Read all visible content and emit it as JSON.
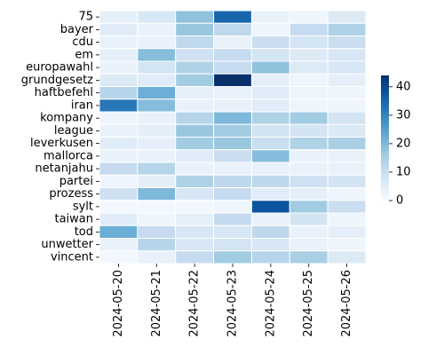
{
  "chart_data": {
    "type": "heatmap",
    "title": "",
    "xlabel": "",
    "ylabel": "",
    "columns": [
      "2024-05-20",
      "2024-05-21",
      "2024-05-22",
      "2024-05-23",
      "2024-05-24",
      "2024-05-25",
      "2024-05-26"
    ],
    "rows": [
      "75",
      "bayer",
      "cdu",
      "em",
      "europawahl",
      "grundgesetz",
      "haftbefehl",
      "iran",
      "kompany",
      "league",
      "leverkusen",
      "mallorca",
      "netanjahu",
      "partei",
      "prozess",
      "sylt",
      "taiwan",
      "tod",
      "unwetter",
      "vincent"
    ],
    "values": [
      [
        4,
        7,
        18,
        35,
        3,
        2,
        6
      ],
      [
        5,
        3,
        17,
        12,
        2,
        11,
        14
      ],
      [
        3,
        3,
        12,
        3,
        10,
        8,
        10
      ],
      [
        4,
        19,
        9,
        11,
        8,
        6,
        7
      ],
      [
        3,
        8,
        14,
        11,
        18,
        6,
        7
      ],
      [
        6,
        5,
        16,
        44,
        4,
        2,
        4
      ],
      [
        13,
        22,
        4,
        3,
        5,
        2,
        2
      ],
      [
        32,
        19,
        3,
        3,
        5,
        2,
        2
      ],
      [
        2,
        3,
        13,
        20,
        14,
        16,
        8
      ],
      [
        3,
        4,
        17,
        16,
        8,
        8,
        6
      ],
      [
        5,
        4,
        16,
        17,
        10,
        14,
        15
      ],
      [
        3,
        3,
        5,
        10,
        19,
        3,
        3
      ],
      [
        11,
        13,
        3,
        3,
        3,
        3,
        3
      ],
      [
        2,
        4,
        14,
        12,
        12,
        9,
        8
      ],
      [
        9,
        20,
        7,
        11,
        5,
        4,
        2
      ],
      [
        1,
        1,
        1,
        2,
        38,
        16,
        10
      ],
      [
        5,
        2,
        4,
        11,
        3,
        8,
        2
      ],
      [
        22,
        11,
        7,
        7,
        12,
        3,
        4
      ],
      [
        3,
        13,
        7,
        8,
        7,
        3,
        2
      ],
      [
        1,
        3,
        11,
        16,
        13,
        15,
        6
      ]
    ],
    "colorbar": {
      "min": 0,
      "max": 44,
      "ticks": [
        0,
        10,
        20,
        30,
        40
      ],
      "colormap": "Blues"
    },
    "grid": false,
    "cell_border_color": "#ffffff"
  }
}
